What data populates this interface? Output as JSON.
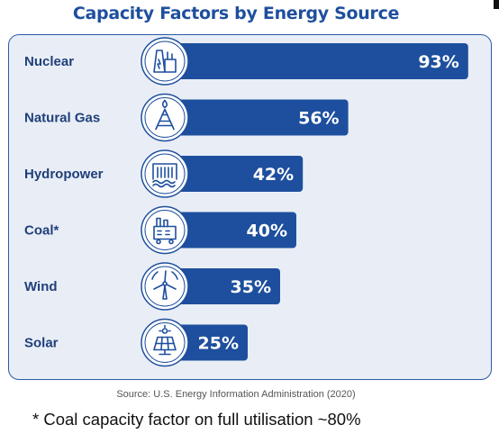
{
  "chart_data": {
    "type": "bar",
    "orientation": "horizontal",
    "title": "Capacity Factors by Energy Source",
    "categories": [
      "Nuclear",
      "Natural Gas",
      "Hydropower",
      "Coal*",
      "Wind",
      "Solar"
    ],
    "values": [
      93,
      56,
      42,
      40,
      35,
      25
    ],
    "value_labels": [
      "93%",
      "56%",
      "42%",
      "40%",
      "35%",
      "25%"
    ],
    "icons": [
      "nuclear-plant-icon",
      "gas-rig-icon",
      "dam-icon",
      "coal-plant-icon",
      "wind-turbine-icon",
      "solar-panel-icon"
    ],
    "xlim": [
      0,
      100
    ],
    "grid": false,
    "legend": "none",
    "colors": {
      "bar": "#1e4f9e",
      "panel_bg": "#e9eef6",
      "border": "#2a5aa6",
      "title": "#1e4f9e",
      "label": "#1f3f7a"
    }
  },
  "source": "Source: U.S. Energy Information Administration (2020)",
  "footnote": "* Coal capacity factor on full utilisation ~80%"
}
